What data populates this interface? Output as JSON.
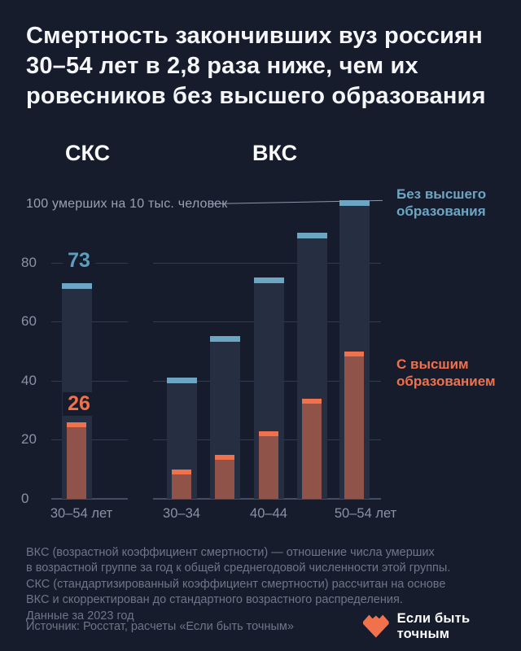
{
  "title": {
    "lines": [
      "Смертность закончивших вуз россиян",
      "30–54 лет в 2,8 раза ниже, чем их",
      "ровесников без высшего образования"
    ]
  },
  "sections": {
    "left": "СКС",
    "right": "ВКС"
  },
  "axis": {
    "unit_label": "100 умерших на 10 тыс. человек",
    "yticks": [
      "0",
      "20",
      "40",
      "60",
      "80"
    ]
  },
  "legend": {
    "no_higher_ed": "Без высшего образования",
    "higher_ed": "С высшим образованием"
  },
  "chart_data": {
    "type": "bar",
    "title": "Смертность закончивших вуз россиян 30–54 лет в 2,8 раза ниже, чем их ровесников без высшего образования",
    "ylabel": "100 умерших на 10 тыс. человек",
    "ylim": [
      0,
      100
    ],
    "yticks": [
      0,
      20,
      40,
      60,
      80
    ],
    "grid": true,
    "legend_position": "right",
    "groups": [
      {
        "title": "СКС",
        "categories": [
          "30–54 лет"
        ],
        "series": [
          {
            "name": "Без высшего образования",
            "values": [
              73
            ]
          },
          {
            "name": "С высшим образованием",
            "values": [
              26
            ]
          }
        ]
      },
      {
        "title": "ВКС",
        "categories": [
          "30–34",
          "",
          "40–44",
          "",
          "50–54 лет"
        ],
        "series": [
          {
            "name": "Без высшего образования",
            "values": [
              41,
              55,
              75,
              90,
              101
            ]
          },
          {
            "name": "С высшим образованием",
            "values": [
              10,
              15,
              23,
              34,
              50
            ]
          }
        ]
      }
    ],
    "annotations": {
      "skc_no_higher_ed": "73",
      "skc_higher_ed": "26"
    }
  },
  "footnote": {
    "lines": [
      "ВКС (возрастной коэффициент смертности) — отношение числа умерших",
      "в возрастной группе за год к общей среднегодовой численности этой группы.",
      "СКС (стандартизированный коэффициент смертности) рассчитан на основе",
      "ВКС и скорректирован до стандартного возрастного распределения.",
      "Данные за 2023 год"
    ]
  },
  "source": "Источник: Росстат, расчеты «Если быть точным»",
  "brand": {
    "name": "Если быть точным"
  },
  "colors": {
    "background": "#161C2B",
    "no_higher_ed": "#6CA6C3",
    "higher_ed_cap": "#F1714C",
    "higher_ed_body": "#8F5349",
    "bar_body": "#262E42",
    "muted_text": "#6E7689",
    "axis_text": "#8A92A5"
  }
}
